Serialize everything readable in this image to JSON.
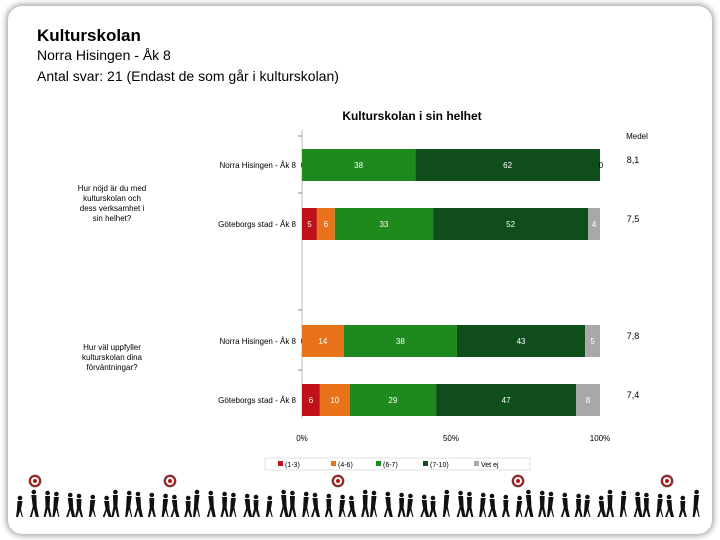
{
  "header": {
    "title": "Kulturskolan",
    "line1": "Norra Hisingen - Åk 8",
    "line2": "Antal svar: 21 (Endast de som går i kulturskolan)"
  },
  "chart_data": {
    "type": "bar",
    "stacked": true,
    "orientation": "horizontal",
    "title": "Kulturskolan i sin helhet",
    "mean_header": "Medel",
    "x_ticks": [
      "0%",
      "50%",
      "100%"
    ],
    "xlim": [
      0,
      100
    ],
    "segment_colors": [
      "#c0101a",
      "#e8731a",
      "#1e8a1e",
      "#0f4d1a",
      "#a8a8a8"
    ],
    "legend": [
      "(1-3)",
      "(4-6)",
      "(6-7)",
      "(7-10)",
      "Vet ej"
    ],
    "questions": [
      {
        "text": "Hur nöjd är du med kulturskolan och dess verksamhet i sin helhet?",
        "rows": [
          {
            "label": "Norra Hisingen - Åk 8",
            "values": [
              0,
              0,
              38,
              62,
              0
            ],
            "display": [
              "0",
              "",
              "38",
              "62",
              "0"
            ],
            "mean": "8,1"
          },
          {
            "label": "Göteborgs stad - Åk 8",
            "values": [
              5,
              6,
              33,
              52,
              4
            ],
            "display": [
              "5",
              "6",
              "33",
              "52",
              "4"
            ],
            "mean": "7,5"
          }
        ]
      },
      {
        "text": "Hur väl uppfyller kulturskolan dina förväntningar?",
        "rows": [
          {
            "label": "Norra Hisingen - Åk 8",
            "values": [
              0,
              14,
              38,
              43,
              5
            ],
            "display": [
              "0",
              "14",
              "38",
              "43",
              "5"
            ],
            "mean": "7,8"
          },
          {
            "label": "Göteborgs stad - Åk 8",
            "values": [
              6,
              10,
              29,
              47,
              8
            ],
            "display": [
              "6",
              "10",
              "29",
              "47",
              "8"
            ],
            "mean": "7,4"
          }
        ]
      }
    ]
  }
}
